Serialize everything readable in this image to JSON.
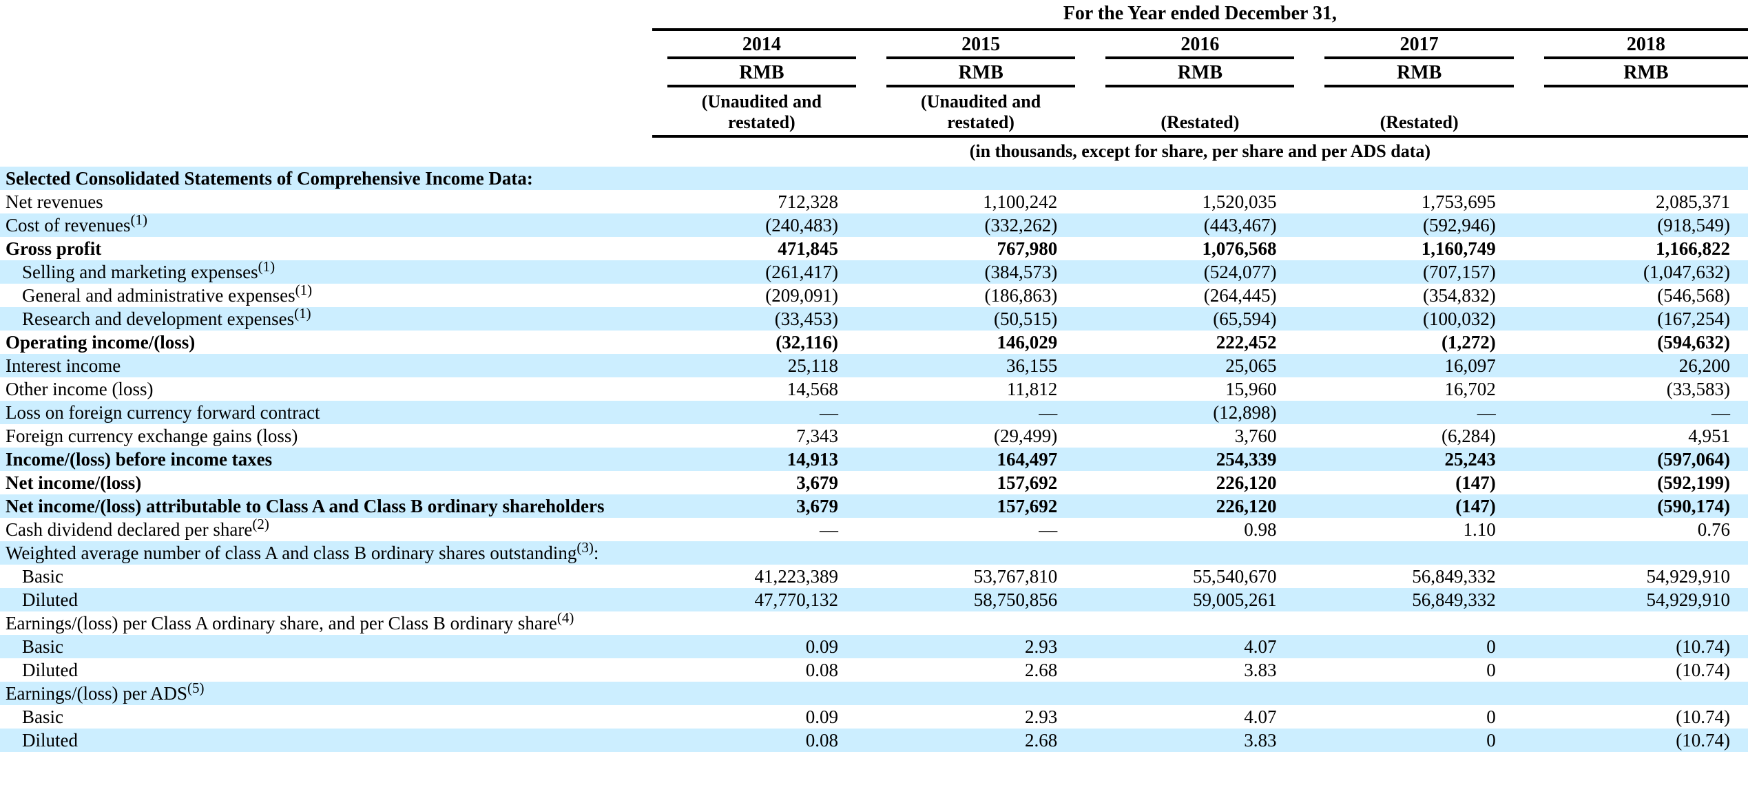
{
  "table": {
    "title": "For the Year ended December 31,",
    "units_note": "(in thousands, except for share, per share and per ADS data)",
    "colors": {
      "row_highlight": "#cceeff",
      "rule": "#000000",
      "text": "#000000"
    },
    "columns": [
      {
        "year": "2014",
        "currency": "RMB",
        "note": "(Unaudited and restated)"
      },
      {
        "year": "2015",
        "currency": "RMB",
        "note": "(Unaudited and restated)"
      },
      {
        "year": "2016",
        "currency": "RMB",
        "note": "(Restated)"
      },
      {
        "year": "2017",
        "currency": "RMB",
        "note": "(Restated)"
      },
      {
        "year": "2018",
        "currency": "RMB",
        "note": ""
      }
    ],
    "rows": [
      {
        "label": "Selected Consolidated Statements of Comprehensive Income Data:",
        "sup": "",
        "suffix": "",
        "bold": true,
        "indent": false,
        "values": [
          "",
          "",
          "",
          "",
          ""
        ]
      },
      {
        "label": "Net revenues",
        "sup": "",
        "suffix": "",
        "bold": false,
        "indent": false,
        "values": [
          "712,328",
          "1,100,242",
          "1,520,035",
          "1,753,695",
          "2,085,371"
        ]
      },
      {
        "label": "Cost of revenues",
        "sup": "(1)",
        "suffix": "",
        "bold": false,
        "indent": false,
        "values": [
          "(240,483)",
          "(332,262)",
          "(443,467)",
          "(592,946)",
          "(918,549)"
        ]
      },
      {
        "label": "Gross profit",
        "sup": "",
        "suffix": "",
        "bold": true,
        "indent": false,
        "values": [
          "471,845",
          "767,980",
          "1,076,568",
          "1,160,749",
          "1,166,822"
        ]
      },
      {
        "label": "Selling and marketing expenses",
        "sup": "(1)",
        "suffix": "",
        "bold": false,
        "indent": true,
        "values": [
          "(261,417)",
          "(384,573)",
          "(524,077)",
          "(707,157)",
          "(1,047,632)"
        ]
      },
      {
        "label": "General and administrative expenses",
        "sup": "(1)",
        "suffix": "",
        "bold": false,
        "indent": true,
        "values": [
          "(209,091)",
          "(186,863)",
          "(264,445)",
          "(354,832)",
          "(546,568)"
        ]
      },
      {
        "label": "Research and development expenses",
        "sup": "(1)",
        "suffix": "",
        "bold": false,
        "indent": true,
        "values": [
          "(33,453)",
          "(50,515)",
          "(65,594)",
          "(100,032)",
          "(167,254)"
        ]
      },
      {
        "label": "Operating income/(loss)",
        "sup": "",
        "suffix": "",
        "bold": true,
        "indent": false,
        "values": [
          "(32,116)",
          "146,029",
          "222,452",
          "(1,272)",
          "(594,632)"
        ]
      },
      {
        "label": "Interest income",
        "sup": "",
        "suffix": "",
        "bold": false,
        "indent": false,
        "values": [
          "25,118",
          "36,155",
          "25,065",
          "16,097",
          "26,200"
        ]
      },
      {
        "label": "Other income (loss)",
        "sup": "",
        "suffix": "",
        "bold": false,
        "indent": false,
        "values": [
          "14,568",
          "11,812",
          "15,960",
          "16,702",
          "(33,583)"
        ]
      },
      {
        "label": "Loss on foreign currency forward contract",
        "sup": "",
        "suffix": "",
        "bold": false,
        "indent": false,
        "values": [
          "—",
          "—",
          "(12,898)",
          "—",
          "—"
        ]
      },
      {
        "label": "Foreign currency exchange gains (loss)",
        "sup": "",
        "suffix": "",
        "bold": false,
        "indent": false,
        "values": [
          "7,343",
          "(29,499)",
          "3,760",
          "(6,284)",
          "4,951"
        ]
      },
      {
        "label": "Income/(loss) before income taxes",
        "sup": "",
        "suffix": "",
        "bold": true,
        "indent": false,
        "values": [
          "14,913",
          "164,497",
          "254,339",
          "25,243",
          "(597,064)"
        ]
      },
      {
        "label": "Net income/(loss)",
        "sup": "",
        "suffix": "",
        "bold": true,
        "indent": false,
        "values": [
          "3,679",
          "157,692",
          "226,120",
          "(147)",
          "(592,199)"
        ]
      },
      {
        "label": "Net income/(loss) attributable to Class A and Class B ordinary shareholders",
        "sup": "",
        "suffix": "",
        "bold": true,
        "indent": false,
        "values": [
          "3,679",
          "157,692",
          "226,120",
          "(147)",
          "(590,174)"
        ]
      },
      {
        "label": "Cash dividend declared per share",
        "sup": "(2)",
        "suffix": "",
        "bold": false,
        "indent": false,
        "values": [
          "—",
          "—",
          "0.98",
          "1.10",
          "0.76"
        ]
      },
      {
        "label": "Weighted average number of class A and class B ordinary shares outstanding",
        "sup": "(3)",
        "suffix": ":",
        "bold": false,
        "indent": false,
        "values": [
          "",
          "",
          "",
          "",
          ""
        ]
      },
      {
        "label": "Basic",
        "sup": "",
        "suffix": "",
        "bold": false,
        "indent": true,
        "values": [
          "41,223,389",
          "53,767,810",
          "55,540,670",
          "56,849,332",
          "54,929,910"
        ]
      },
      {
        "label": "Diluted",
        "sup": "",
        "suffix": "",
        "bold": false,
        "indent": true,
        "values": [
          "47,770,132",
          "58,750,856",
          "59,005,261",
          "56,849,332",
          "54,929,910"
        ]
      },
      {
        "label": "Earnings/(loss) per Class A ordinary share, and per Class B ordinary share",
        "sup": "(4)",
        "suffix": "",
        "bold": false,
        "indent": false,
        "values": [
          "",
          "",
          "",
          "",
          ""
        ]
      },
      {
        "label": "Basic",
        "sup": "",
        "suffix": "",
        "bold": false,
        "indent": true,
        "values": [
          "0.09",
          "2.93",
          "4.07",
          "0",
          "(10.74)"
        ]
      },
      {
        "label": "Diluted",
        "sup": "",
        "suffix": "",
        "bold": false,
        "indent": true,
        "values": [
          "0.08",
          "2.68",
          "3.83",
          "0",
          "(10.74)"
        ]
      },
      {
        "label": "Earnings/(loss) per ADS",
        "sup": "(5)",
        "suffix": "",
        "bold": false,
        "indent": false,
        "values": [
          "",
          "",
          "",
          "",
          ""
        ]
      },
      {
        "label": "Basic",
        "sup": "",
        "suffix": "",
        "bold": false,
        "indent": true,
        "values": [
          "0.09",
          "2.93",
          "4.07",
          "0",
          "(10.74)"
        ]
      },
      {
        "label": "Diluted",
        "sup": "",
        "suffix": "",
        "bold": false,
        "indent": true,
        "values": [
          "0.08",
          "2.68",
          "3.83",
          "0",
          "(10.74)"
        ]
      }
    ]
  }
}
